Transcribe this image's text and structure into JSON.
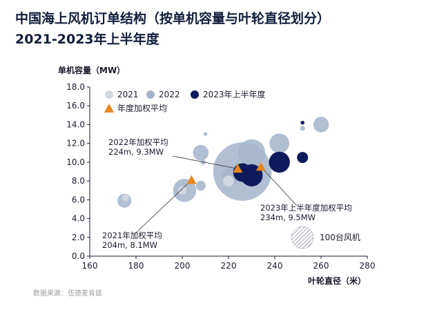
{
  "title": {
    "line1": "中国海上风机订单结构（按单机容量与叶轮直径划分）",
    "line2": "2021-2023年上半年度"
  },
  "source": "数据来源：伍德麦肯兹",
  "colors": {
    "y2021": "#d4d8e1",
    "y2022": "#a3b4cb",
    "y2023": "#0d1a5c",
    "weighted": "#e8841e",
    "axis": "#1a1a2e"
  },
  "chart_data": {
    "type": "scatter",
    "xlabel": "叶轮直径（米）",
    "ylabel": "单机容量（MW）",
    "xlim": [
      160,
      280
    ],
    "ylim": [
      0,
      18
    ],
    "x_ticks": [
      "160",
      "180",
      "200",
      "220",
      "240",
      "260",
      "280"
    ],
    "y_ticks": [
      "0.0",
      "2.0",
      "4.0",
      "6.0",
      "8.0",
      "10.0",
      "12.0",
      "14.0",
      "16.0",
      "18.0"
    ],
    "legend": {
      "placement": "top-left",
      "items": [
        {
          "key": "y2021",
          "label": "2021",
          "shape": "circle"
        },
        {
          "key": "y2022",
          "label": "2022",
          "shape": "circle"
        },
        {
          "key": "y2023",
          "label": "2023年上半年度",
          "shape": "circle"
        },
        {
          "key": "weighted",
          "label": "年度加权平均",
          "shape": "triangle"
        }
      ]
    },
    "size_legend_label": "100台风机",
    "size_legend_units": 100,
    "series": [
      {
        "name": "2021",
        "points": [
          {
            "x": 175.5,
            "y": 6.2,
            "n": 10
          },
          {
            "x": 200,
            "y": 7.0,
            "n": 15
          },
          {
            "x": 220,
            "y": 8.0,
            "n": 25
          },
          {
            "x": 230,
            "y": 9.0,
            "n": 12
          }
        ]
      },
      {
        "name": "2022",
        "points": [
          {
            "x": 175,
            "y": 5.9,
            "n": 40
          },
          {
            "x": 201,
            "y": 7.0,
            "n": 110
          },
          {
            "x": 208,
            "y": 7.5,
            "n": 20
          },
          {
            "x": 208,
            "y": 11.0,
            "n": 50
          },
          {
            "x": 209,
            "y": 10.0,
            "n": 5
          },
          {
            "x": 210,
            "y": 13.0,
            "n": 3
          },
          {
            "x": 221,
            "y": 8.5,
            "n": 60
          },
          {
            "x": 226,
            "y": 9.0,
            "n": 700
          },
          {
            "x": 230,
            "y": 11.0,
            "n": 150
          },
          {
            "x": 242,
            "y": 12.0,
            "n": 80
          },
          {
            "x": 252,
            "y": 13.6,
            "n": 5
          },
          {
            "x": 260,
            "y": 14.0,
            "n": 50
          }
        ]
      },
      {
        "name": "2023年上半年度",
        "points": [
          {
            "x": 226,
            "y": 8.9,
            "n": 70
          },
          {
            "x": 230,
            "y": 8.6,
            "n": 100
          },
          {
            "x": 242,
            "y": 10.0,
            "n": 90
          },
          {
            "x": 252,
            "y": 10.5,
            "n": 25
          },
          {
            "x": 252,
            "y": 14.2,
            "n": 3
          }
        ]
      }
    ],
    "weighted_averages": [
      {
        "year": "2021",
        "label_line1": "2021年加权平均",
        "label_line2": "204m, 8.1MW",
        "x": 204,
        "y": 8.1
      },
      {
        "year": "2022",
        "label_line1": "2022年加权平均",
        "label_line2": "224m, 9.3MW",
        "x": 224,
        "y": 9.3
      },
      {
        "year": "2023",
        "label_line1": "2023年上半年度加权平均",
        "label_line2": "234m, 9.5MW",
        "x": 234,
        "y": 9.5
      }
    ]
  }
}
